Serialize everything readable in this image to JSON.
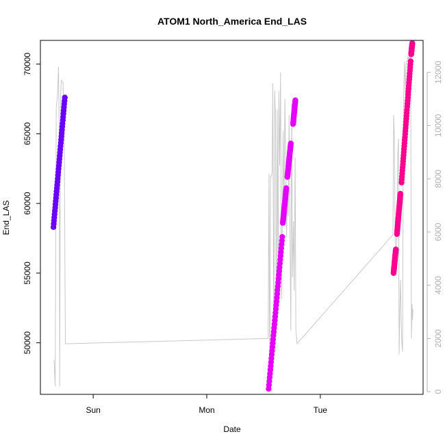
{
  "chart_data": {
    "type": "scatter",
    "title": "ATOM1 North_America End_LAS",
    "xlabel": "Date",
    "ylabel": "End_LAS",
    "x_ticks": [
      "Sun",
      "Mon",
      "Tue"
    ],
    "x_tick_positions_days": [
      1,
      2,
      3
    ],
    "xlim_days": [
      0.535,
      3.905
    ],
    "ylim": [
      46300,
      71700
    ],
    "y_ticks": [
      50000,
      55000,
      60000,
      65000,
      70000
    ],
    "y2lim": [
      -100,
      13200
    ],
    "y2_ticks": [
      0,
      2000,
      4000,
      6000,
      8000,
      10000,
      12000
    ],
    "series": [
      {
        "color": "#6a00ff",
        "segments": [
          {
            "x": [
              0.65,
              0.75
            ],
            "y": [
              58300,
              67600
            ]
          }
        ]
      },
      {
        "color": "#e600ff",
        "segments": [
          {
            "x": [
              2.545,
              2.665
            ],
            "y": [
              46700,
              57600
            ]
          },
          {
            "x": [
              2.67,
              2.7
            ],
            "y": [
              58600,
              61100
            ]
          },
          {
            "x": [
              2.71,
              2.74
            ],
            "y": [
              61900,
              64300
            ]
          },
          {
            "x": [
              2.76,
              2.78
            ],
            "y": [
              65700,
              67400
            ]
          }
        ]
      },
      {
        "color": "#ff0090",
        "segments": [
          {
            "x": [
              3.645,
              3.665
            ],
            "y": [
              55000,
              56700
            ]
          },
          {
            "x": [
              3.675,
              3.705
            ],
            "y": [
              57800,
              60700
            ]
          },
          {
            "x": [
              3.715,
              3.795
            ],
            "y": [
              61500,
              70200
            ]
          },
          {
            "x": [
              3.8,
              3.81
            ],
            "y": [
              70700,
              71500
            ]
          }
        ]
      }
    ],
    "gray_line_y2": {
      "x": [
        0.655,
        0.665,
        0.675,
        0.685,
        0.695,
        0.7,
        0.705,
        0.712,
        0.72,
        0.735,
        0.745,
        0.755,
        0.76,
        2.54,
        2.548,
        2.555,
        2.562,
        2.568,
        2.575,
        2.582,
        2.59,
        2.598,
        2.605,
        2.612,
        2.62,
        2.628,
        2.635,
        2.642,
        2.65,
        2.658,
        2.665,
        2.673,
        2.68,
        2.688,
        2.695,
        2.703,
        2.71,
        2.718,
        2.725,
        2.733,
        2.74,
        2.748,
        2.755,
        2.763,
        2.77,
        2.778,
        2.785,
        2.795,
        3.64,
        3.646,
        3.652,
        3.658,
        3.664,
        3.67,
        3.676,
        3.682,
        3.688,
        3.694,
        3.7,
        3.706,
        3.712,
        3.718,
        3.724,
        3.73,
        3.736,
        3.742,
        3.748,
        3.754,
        3.76,
        3.766,
        3.772,
        3.778,
        3.784,
        3.79,
        3.796,
        3.802,
        3.808,
        3.812,
        3.815
      ],
      "y": [
        1200,
        200,
        10700,
        11100,
        12200,
        9800,
        200,
        11100,
        11700,
        11600,
        9800,
        1800,
        1800,
        2000,
        8200,
        100,
        8100,
        8100,
        8200,
        11600,
        1800,
        11300,
        10300,
        2300,
        10600,
        3600,
        11300,
        8500,
        12000,
        3500,
        6300,
        9800,
        6800,
        11000,
        8800,
        5800,
        7700,
        6600,
        10400,
        6000,
        2300,
        10800,
        4300,
        6400,
        3800,
        8800,
        2300,
        1800,
        5900,
        10400,
        9600,
        6200,
        4500,
        4900,
        6500,
        8900,
        9500,
        1400,
        3100,
        4200,
        2600,
        1800,
        1500,
        9800,
        11600,
        12400,
        11200,
        12200,
        12400,
        12400,
        12600,
        12500,
        12600,
        12400,
        12600,
        2000,
        3300,
        2700,
        3100
      ]
    }
  }
}
